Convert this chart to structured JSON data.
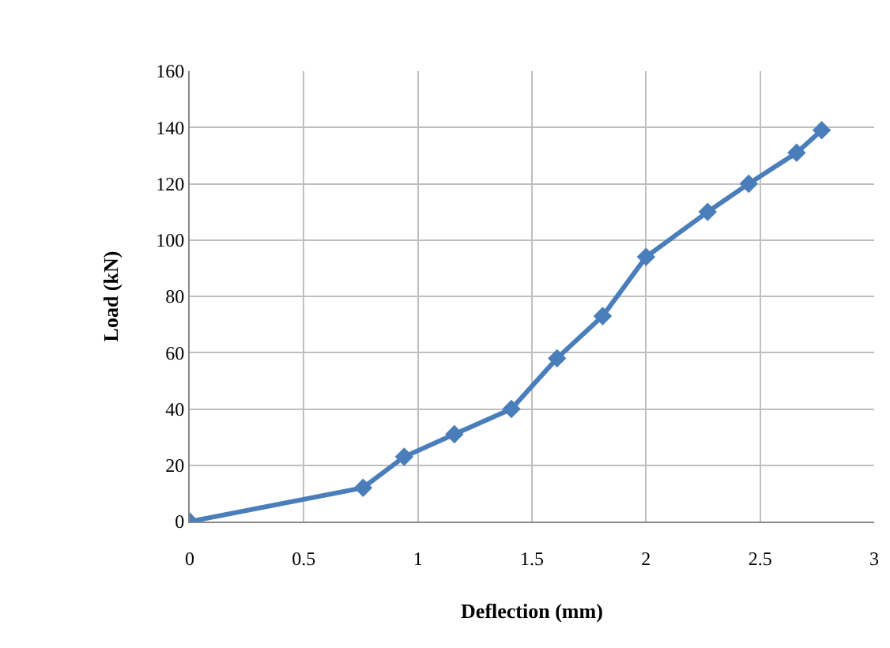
{
  "chart_data": {
    "type": "line",
    "xlabel": "Deflection (mm)",
    "ylabel": "Load (kN)",
    "x": [
      0,
      0.76,
      0.94,
      1.16,
      1.41,
      1.61,
      1.81,
      2.0,
      2.27,
      2.45,
      2.66,
      2.77
    ],
    "series": [
      {
        "color": "#4a7ebb",
        "values": [
          0,
          12,
          23,
          31,
          40,
          58,
          73,
          94,
          110,
          120,
          131,
          139
        ]
      }
    ],
    "xlim": [
      0,
      3
    ],
    "xticks": [
      0,
      0.5,
      1,
      1.5,
      2,
      2.5,
      3
    ],
    "ylim": [
      0,
      160
    ],
    "yticks": [
      0,
      20,
      40,
      60,
      80,
      100,
      120,
      140,
      160
    ],
    "grid": true,
    "legend": false,
    "marker": "diamond",
    "line_style": "solid"
  }
}
